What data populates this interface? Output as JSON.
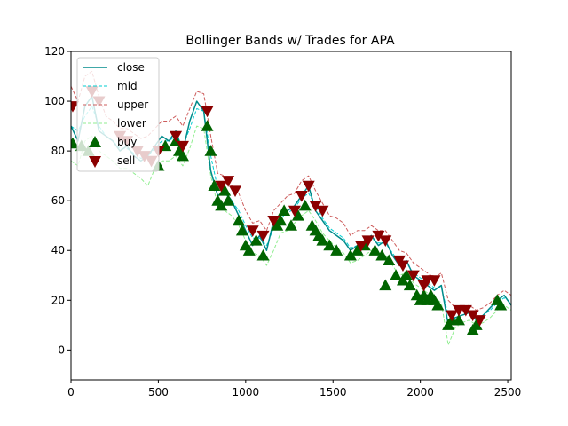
{
  "chart_data": {
    "type": "line",
    "title": "Bollinger Bands w/ Trades for APA",
    "xlabel": "",
    "ylabel": "",
    "xlim": [
      0,
      2520
    ],
    "ylim": [
      -12,
      120
    ],
    "x_ticks": [
      0,
      500,
      1000,
      1500,
      2000,
      2500
    ],
    "y_ticks": [
      0,
      20,
      40,
      60,
      80,
      100,
      120
    ],
    "grid": false,
    "legend_position": "top-left",
    "legend": [
      "close",
      "mid",
      "upper",
      "lower",
      "buy",
      "sell"
    ],
    "colors": {
      "close": "#008b8b",
      "mid": "#00ced1",
      "upper": "#cd5c5c",
      "lower": "#90ee90",
      "buy": "#006400",
      "sell": "#8b0000"
    },
    "series": [
      {
        "name": "close",
        "x": [
          0,
          40,
          80,
          120,
          160,
          200,
          240,
          280,
          320,
          360,
          400,
          440,
          480,
          520,
          560,
          600,
          640,
          680,
          720,
          760,
          800,
          840,
          880,
          920,
          960,
          1000,
          1040,
          1080,
          1120,
          1160,
          1200,
          1240,
          1280,
          1320,
          1360,
          1400,
          1440,
          1480,
          1520,
          1560,
          1600,
          1640,
          1680,
          1720,
          1760,
          1800,
          1840,
          1880,
          1920,
          1960,
          2000,
          2040,
          2080,
          2120,
          2160,
          2200,
          2240,
          2280,
          2320,
          2360,
          2400,
          2440,
          2480,
          2520
        ],
        "y": [
          90,
          84,
          98,
          102,
          88,
          86,
          84,
          80,
          82,
          78,
          76,
          78,
          82,
          86,
          84,
          88,
          80,
          92,
          100,
          96,
          72,
          62,
          64,
          60,
          54,
          48,
          42,
          46,
          40,
          52,
          54,
          56,
          58,
          62,
          66,
          56,
          52,
          48,
          46,
          44,
          40,
          42,
          44,
          46,
          42,
          44,
          38,
          34,
          36,
          30,
          28,
          26,
          24,
          26,
          10,
          13,
          14,
          15,
          12,
          14,
          17,
          20,
          22,
          18
        ]
      },
      {
        "name": "mid",
        "x": [
          0,
          40,
          80,
          120,
          160,
          200,
          240,
          280,
          320,
          360,
          400,
          440,
          480,
          520,
          560,
          600,
          640,
          680,
          720,
          760,
          800,
          840,
          880,
          920,
          960,
          1000,
          1040,
          1080,
          1120,
          1160,
          1200,
          1240,
          1280,
          1320,
          1360,
          1400,
          1440,
          1480,
          1520,
          1560,
          1600,
          1640,
          1680,
          1720,
          1760,
          1800,
          1840,
          1880,
          1920,
          1960,
          2000,
          2040,
          2080,
          2120,
          2160,
          2200,
          2240,
          2280,
          2320,
          2360,
          2400,
          2440,
          2480,
          2520
        ],
        "y": [
          90,
          88,
          94,
          98,
          90,
          86,
          84,
          81,
          81,
          79,
          77,
          78,
          81,
          84,
          84,
          86,
          82,
          89,
          97,
          96,
          78,
          65,
          63,
          60,
          56,
          50,
          45,
          45,
          42,
          49,
          53,
          55,
          57,
          61,
          63,
          58,
          53,
          49,
          47,
          45,
          41,
          42,
          43,
          45,
          43,
          43,
          39,
          35,
          35,
          31,
          29,
          27,
          25,
          25,
          14,
          13,
          14,
          15,
          13,
          14,
          16,
          19,
          21,
          19
        ]
      },
      {
        "name": "upper",
        "x": [
          0,
          40,
          80,
          120,
          160,
          200,
          240,
          280,
          320,
          360,
          400,
          440,
          480,
          520,
          560,
          600,
          640,
          680,
          720,
          760,
          800,
          840,
          880,
          920,
          960,
          1000,
          1040,
          1080,
          1120,
          1160,
          1200,
          1240,
          1280,
          1320,
          1360,
          1400,
          1440,
          1480,
          1520,
          1560,
          1600,
          1640,
          1680,
          1720,
          1760,
          1800,
          1840,
          1880,
          1920,
          1960,
          2000,
          2040,
          2080,
          2120,
          2160,
          2200,
          2240,
          2280,
          2320,
          2360,
          2400,
          2440,
          2480,
          2520
        ],
        "y": [
          106,
          100,
          110,
          112,
          102,
          94,
          92,
          89,
          89,
          87,
          85,
          86,
          89,
          92,
          92,
          94,
          90,
          97,
          104,
          103,
          86,
          71,
          70,
          66,
          63,
          56,
          51,
          52,
          48,
          56,
          59,
          62,
          63,
          68,
          70,
          64,
          59,
          54,
          53,
          51,
          46,
          48,
          48,
          50,
          48,
          48,
          44,
          40,
          39,
          35,
          33,
          31,
          29,
          31,
          20,
          17,
          17,
          18,
          16,
          17,
          19,
          22,
          24,
          22
        ]
      },
      {
        "name": "lower",
        "x": [
          0,
          40,
          80,
          120,
          160,
          200,
          240,
          280,
          320,
          360,
          400,
          440,
          480,
          520,
          560,
          600,
          640,
          680,
          720,
          760,
          800,
          840,
          880,
          920,
          960,
          1000,
          1040,
          1080,
          1120,
          1160,
          1200,
          1240,
          1280,
          1320,
          1360,
          1400,
          1440,
          1480,
          1520,
          1560,
          1600,
          1640,
          1680,
          1720,
          1760,
          1800,
          1840,
          1880,
          1920,
          1960,
          2000,
          2040,
          2080,
          2120,
          2160,
          2200,
          2240,
          2280,
          2320,
          2360,
          2400,
          2440,
          2480,
          2520
        ],
        "y": [
          76,
          74,
          84,
          86,
          80,
          78,
          76,
          73,
          73,
          71,
          69,
          66,
          73,
          76,
          76,
          78,
          74,
          81,
          90,
          89,
          70,
          58,
          56,
          54,
          50,
          44,
          39,
          38,
          34,
          40,
          47,
          48,
          51,
          54,
          56,
          52,
          47,
          44,
          41,
          39,
          35,
          36,
          38,
          40,
          38,
          38,
          34,
          30,
          31,
          27,
          25,
          23,
          21,
          19,
          2,
          9,
          11,
          12,
          10,
          11,
          13,
          16,
          18,
          16
        ]
      }
    ],
    "buy_points": {
      "x": [
        10,
        60,
        100,
        500,
        540,
        600,
        620,
        640,
        780,
        800,
        820,
        840,
        860,
        880,
        900,
        960,
        980,
        1000,
        1020,
        1060,
        1100,
        1180,
        1200,
        1220,
        1260,
        1300,
        1340,
        1380,
        1400,
        1420,
        1440,
        1480,
        1520,
        1600,
        1640,
        1680,
        1740,
        1780,
        1800,
        1820,
        1860,
        1900,
        1920,
        1940,
        1980,
        2000,
        2020,
        2040,
        2060,
        2080,
        2100,
        2160,
        2180,
        2220,
        2300,
        2320,
        2440,
        2460
      ],
      "y": [
        83,
        82,
        80,
        74,
        82,
        84,
        80,
        78,
        90,
        80,
        66,
        60,
        58,
        64,
        60,
        52,
        48,
        42,
        40,
        44,
        38,
        50,
        52,
        56,
        50,
        54,
        58,
        50,
        48,
        46,
        44,
        42,
        40,
        38,
        40,
        42,
        40,
        38,
        26,
        36,
        30,
        28,
        30,
        26,
        22,
        20,
        22,
        20,
        22,
        20,
        18,
        10,
        12,
        12,
        8,
        10,
        20,
        18
      ]
    },
    "sell_points": {
      "x": [
        10,
        120,
        160,
        280,
        320,
        380,
        420,
        460,
        500,
        600,
        640,
        780,
        860,
        900,
        940,
        1040,
        1100,
        1160,
        1280,
        1320,
        1360,
        1400,
        1440,
        1660,
        1700,
        1760,
        1800,
        1880,
        1900,
        1960,
        2020,
        2040,
        2080,
        2180,
        2220,
        2260,
        2300,
        2340
      ],
      "y": [
        98,
        104,
        100,
        86,
        84,
        80,
        78,
        76,
        80,
        86,
        82,
        96,
        66,
        68,
        64,
        48,
        46,
        52,
        56,
        62,
        66,
        58,
        56,
        42,
        44,
        46,
        44,
        36,
        34,
        30,
        26,
        28,
        28,
        14,
        16,
        16,
        14,
        12
      ]
    }
  }
}
